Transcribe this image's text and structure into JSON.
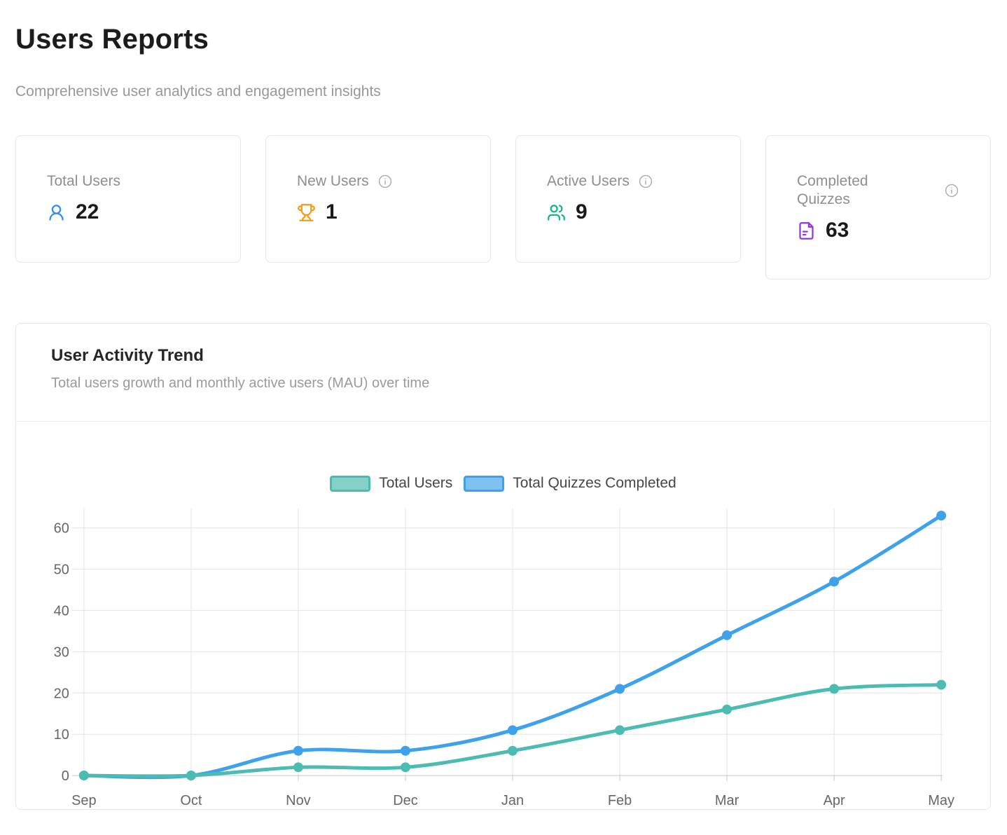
{
  "page": {
    "title": "Users Reports",
    "subtitle": "Comprehensive user analytics and engagement insights"
  },
  "stats": [
    {
      "label": "Total Users",
      "value": "22",
      "icon": "user-icon",
      "icon_color": "#2e8ef7",
      "has_info": false
    },
    {
      "label": "New Users",
      "value": "1",
      "icon": "trophy-icon",
      "icon_color": "#f99b0c",
      "has_info": true
    },
    {
      "label": "Active Users",
      "value": "9",
      "icon": "users-icon",
      "icon_color": "#10b981",
      "has_info": true
    },
    {
      "label": "Completed Quizzes",
      "value": "63",
      "icon": "file-text-icon",
      "icon_color": "#9333ea",
      "has_info": true
    }
  ],
  "chart_data": {
    "type": "line",
    "title": "User Activity Trend",
    "subtitle": "Total users growth and monthly active users (MAU) over time",
    "categories": [
      "Sep",
      "Oct",
      "Nov",
      "Dec",
      "Jan",
      "Feb",
      "Mar",
      "Apr",
      "May"
    ],
    "series": [
      {
        "name": "Total Users",
        "color": "#4cbcb2",
        "legend_fill": "#85d1c8",
        "values": [
          0,
          0,
          2,
          2,
          6,
          11,
          16,
          21,
          22
        ]
      },
      {
        "name": "Total Quizzes Completed",
        "color": "#3da2e9",
        "legend_fill": "#7fc2f1",
        "values": [
          0,
          0,
          6,
          6,
          11,
          21,
          34,
          47,
          63
        ]
      }
    ],
    "ylim": [
      0,
      60
    ],
    "ytick_step": 10,
    "grid": true,
    "smooth": true,
    "legend_position": "top",
    "axis_text_color": "#666666",
    "grid_color": "#e4e4e4",
    "axis_line_color": "#c6c6c6"
  }
}
